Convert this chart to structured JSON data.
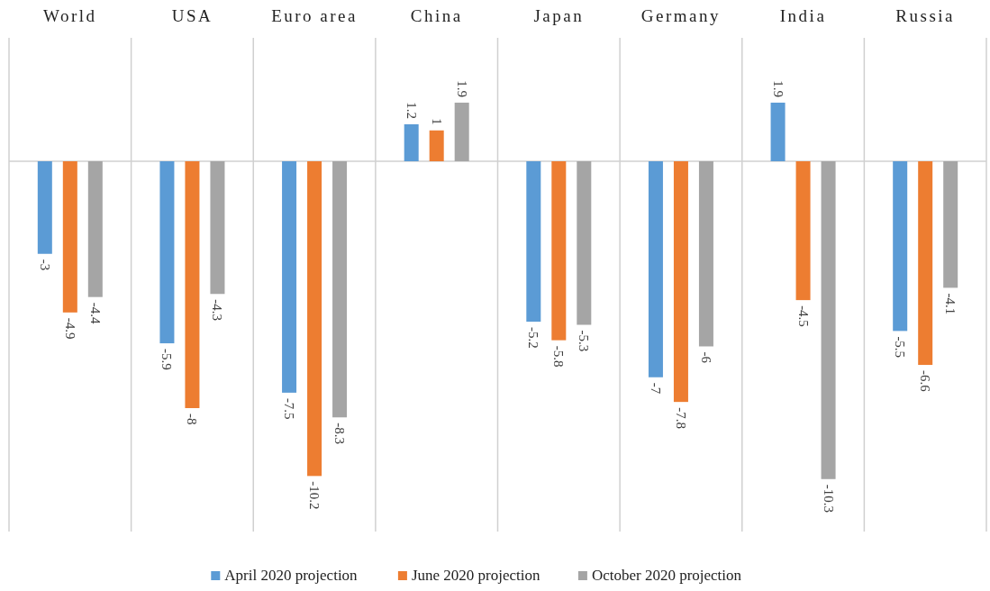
{
  "chart_data": {
    "type": "bar",
    "categories": [
      "World",
      "USA",
      "Euro area",
      "China",
      "Japan",
      "Germany",
      "India",
      "Russia"
    ],
    "series": [
      {
        "name": "April 2020 projection",
        "color": "#5b9bd5",
        "values": [
          -3,
          -5.9,
          -7.5,
          1.2,
          -5.2,
          -7,
          1.9,
          -5.5
        ]
      },
      {
        "name": "June 2020 projection",
        "color": "#ed7d31",
        "values": [
          -4.9,
          -8,
          -10.2,
          1,
          -5.8,
          -7.8,
          -4.5,
          -6.6
        ]
      },
      {
        "name": "October 2020 projection",
        "color": "#a5a5a5",
        "values": [
          -4.4,
          -4.3,
          -8.3,
          1.9,
          -5.3,
          -6,
          -10.3,
          -4.1
        ]
      }
    ],
    "ylim": [
      -12,
      4
    ],
    "data_labels": true,
    "tick_labels": "x",
    "legend": "bottom"
  }
}
